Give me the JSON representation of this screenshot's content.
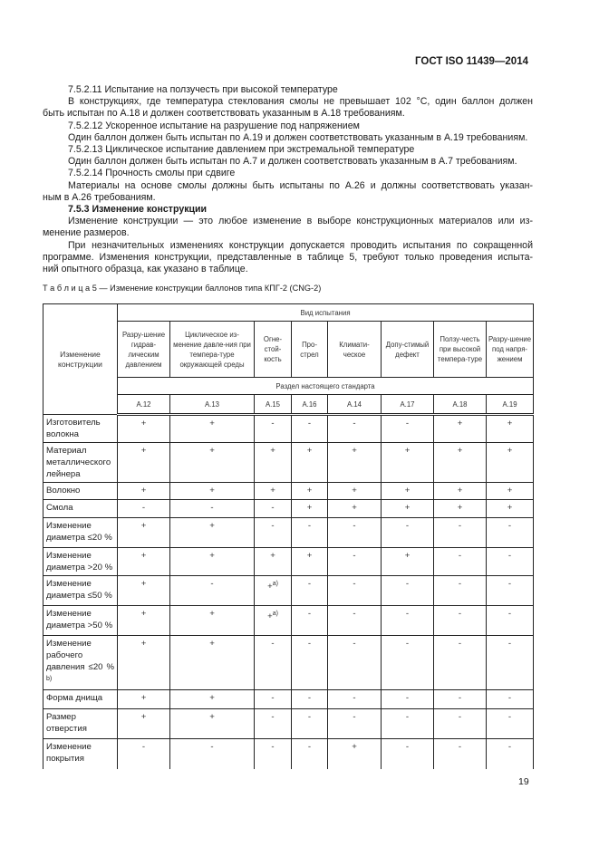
{
  "header": {
    "doc_id": "ГОСТ ISO 11439—2014"
  },
  "paragraphs": [
    {
      "indent": true,
      "lines": [
        "7.5.2.11 Испытание на ползучесть при высокой температуре"
      ]
    },
    {
      "indent": true,
      "lines": [
        "В конструкциях, где температура стеклования смолы не превышает 102 °C, один баллон должен",
        "быть испытан по А.18 и должен соответствовать указанным в А.18 требованиям."
      ]
    },
    {
      "indent": true,
      "lines": [
        "7.5.2.12 Ускоренное испытание на разрушение под напряжением"
      ]
    },
    {
      "indent": true,
      "lines": [
        "Один баллон должен быть испытан по А.19 и должен соответствовать указанным в А.19 требованиям."
      ]
    },
    {
      "indent": true,
      "lines": [
        "7.5.2.13 Циклическое испытание давлением при экстремальной температуре"
      ]
    },
    {
      "indent": true,
      "lines": [
        "Один баллон должен быть испытан по А.7 и должен соответствовать указанным в А.7 требованиям."
      ]
    },
    {
      "indent": true,
      "lines": [
        "7.5.2.14 Прочность смолы при сдвиге"
      ]
    },
    {
      "indent": true,
      "lines": [
        "Материалы на основе смолы должны быть испытаны по А.26 и должны соответствовать указан-",
        "ным в А.26 требованиям."
      ]
    },
    {
      "indent": true,
      "bold": true,
      "lines": [
        "7.5.3 Изменение конструкции"
      ]
    },
    {
      "indent": true,
      "lines": [
        "Изменение конструкции — это любое изменение в выборе конструкционных материалов или из-",
        "менение размеров."
      ]
    },
    {
      "indent": true,
      "lines": [
        "При незначительных изменениях конструкции допускается проводить испытания по сокращенной",
        "программе. Изменения конструкции, представленные в таблице 5, требуют только проведения испыта-",
        "ний опытного образца, как указано в таблице."
      ]
    }
  ],
  "table": {
    "caption": "Т а б л и ц а 5 — Изменение конструкции баллонов типа КПГ-2 (CNG-2)",
    "row_header": "Изменение конструкции",
    "group_header": "Вид испытания",
    "section_header": "Раздел настоящего стандарта",
    "columns": [
      {
        "label": "Разру-шение гидрав-лическим давлением",
        "section": "А.12"
      },
      {
        "label": "Циклическое из-менение давле-ния при темпера-туре окружающей среды",
        "section": "А.13"
      },
      {
        "label": "Огне-стой-кость",
        "section": "А.15"
      },
      {
        "label": "Про-стрел",
        "section": "А.16"
      },
      {
        "label": "Климати-ческое",
        "section": "А.14"
      },
      {
        "label": "Допу-стимый дефект",
        "section": "А.17"
      },
      {
        "label": "Ползу-честь при высокой темпера-туре",
        "section": "А.18"
      },
      {
        "label": "Разру-шение под напря-жением",
        "section": "А.19"
      }
    ],
    "rows": [
      {
        "label": "Изготовитель волокна",
        "values": [
          "+",
          "+",
          "-",
          "-",
          "-",
          "-",
          "+",
          "+"
        ]
      },
      {
        "label": "Материал металлического лейнера",
        "values": [
          "+",
          "+",
          "+",
          "+",
          "+",
          "+",
          "+",
          "+"
        ]
      },
      {
        "label": "Волокно",
        "values": [
          "+",
          "+",
          "+",
          "+",
          "+",
          "+",
          "+",
          "+"
        ]
      },
      {
        "label": "Смола",
        "values": [
          "-",
          "-",
          "-",
          "+",
          "+",
          "+",
          "+",
          "+"
        ]
      },
      {
        "label": "Изменение диаметра ≤20 %",
        "values": [
          "+",
          "+",
          "-",
          "-",
          "-",
          "-",
          "-",
          "-"
        ]
      },
      {
        "label": "Изменение диаметра >20 %",
        "values": [
          "+",
          "+",
          "+",
          "+",
          "-",
          "+",
          "-",
          "-"
        ]
      },
      {
        "label": "Изменение диаметра ≤50 %",
        "values": [
          "+",
          "-",
          "+",
          "-",
          "-",
          "-",
          "-",
          "-"
        ],
        "notes": {
          "2": "a)"
        }
      },
      {
        "label": "Изменение диаметра >50 %",
        "values": [
          "+",
          "+",
          "+",
          "-",
          "-",
          "-",
          "-",
          "-"
        ],
        "notes": {
          "2": "a)"
        }
      },
      {
        "label": "Изменение рабочего давления ≤20 %",
        "label_note": "b)",
        "values": [
          "+",
          "+",
          "-",
          "-",
          "-",
          "-",
          "-",
          "-"
        ]
      },
      {
        "label": "Форма днища",
        "values": [
          "+",
          "+",
          "-",
          "-",
          "-",
          "-",
          "-",
          "-"
        ]
      },
      {
        "label": "Размер отверстия",
        "values": [
          "+",
          "+",
          "-",
          "-",
          "-",
          "-",
          "-",
          "-"
        ]
      },
      {
        "label": "Изменение покрытия",
        "values": [
          "-",
          "-",
          "-",
          "-",
          "+",
          "-",
          "-",
          "-"
        ]
      }
    ]
  },
  "page_number": "19"
}
